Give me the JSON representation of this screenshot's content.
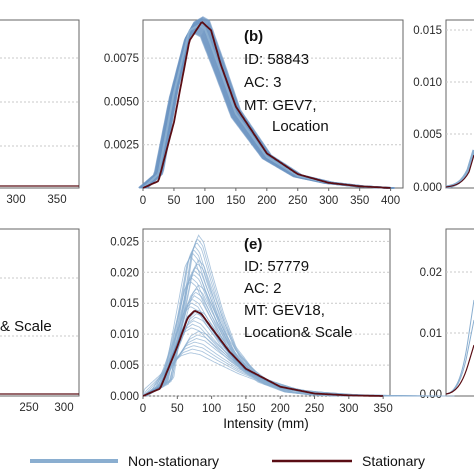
{
  "colors": {
    "non_stationary": "#8aaed0",
    "non_stationary_band": "#6d96c2",
    "stationary": "#5a0d14",
    "axis": "#666666",
    "grid": "#c9c9c9"
  },
  "shared_xlabel": "Intensity (mm)",
  "legend": {
    "position": "bottom",
    "items": [
      {
        "label": "Non-stationary",
        "color": "#8aaed0"
      },
      {
        "label": "Stationary",
        "color": "#5a0d14"
      }
    ]
  },
  "chart_data": [
    {
      "panel": "top-left",
      "type": "line",
      "label": "",
      "annotation": [],
      "xticks": [
        "300",
        "350"
      ],
      "yticks": [],
      "note": "partially cropped panel"
    },
    {
      "panel": "b",
      "type": "line",
      "label": "(b)",
      "annotation": [
        "ID: 58843",
        "AC: 3",
        "MT: GEV7,",
        "Location"
      ],
      "xlim": [
        0,
        420
      ],
      "ylim": [
        0,
        0.0097
      ],
      "xticks": [
        0,
        50,
        100,
        150,
        200,
        250,
        300,
        350,
        400
      ],
      "yticks": [
        0.0025,
        0.005,
        0.0075
      ],
      "ytick_labels": [
        "0.0025",
        "0.0050",
        "0.0075"
      ],
      "grid": "horizontal",
      "series": [
        {
          "name": "Non-stationary",
          "kind": "ensemble",
          "x": [
            0,
            25,
            50,
            75,
            90,
            100,
            125,
            150,
            200,
            250,
            300,
            350,
            400
          ],
          "y": [
            0,
            0.0008,
            0.0055,
            0.0091,
            0.0094,
            0.0092,
            0.0068,
            0.0043,
            0.0018,
            0.0007,
            0.0003,
            0.0001,
            0.0
          ],
          "spread": 0.0007
        },
        {
          "name": "Stationary",
          "x": [
            0,
            25,
            50,
            75,
            95,
            110,
            125,
            150,
            200,
            250,
            300,
            350,
            400
          ],
          "y": [
            0,
            0.0004,
            0.0038,
            0.0085,
            0.0096,
            0.0091,
            0.0072,
            0.0047,
            0.002,
            0.0008,
            0.0003,
            0.0001,
            0.0
          ]
        }
      ]
    },
    {
      "panel": "top-right",
      "type": "line",
      "label": "",
      "annotation": [],
      "yticks": [
        0.0,
        0.005,
        0.01,
        0.015
      ],
      "ytick_labels": [
        "0.000",
        "0.005",
        "0.010",
        "0.015"
      ],
      "note": "partially cropped panel"
    },
    {
      "panel": "bottom-left",
      "type": "line",
      "label": "",
      "annotation": [
        "& Scale"
      ],
      "xticks": [
        "250",
        "300"
      ],
      "note": "partially cropped panel"
    },
    {
      "panel": "e",
      "type": "line",
      "label": "(e)",
      "annotation": [
        "ID: 57779",
        "AC: 2",
        "MT: GEV18,",
        "Location& Scale"
      ],
      "xlim": [
        0,
        360
      ],
      "ylim": [
        0,
        0.027
      ],
      "xticks": [
        0,
        50,
        100,
        150,
        200,
        250,
        300,
        350
      ],
      "yticks": [
        0.0,
        0.005,
        0.01,
        0.015,
        0.02,
        0.025
      ],
      "ytick_labels": [
        "0.000",
        "0.005",
        "0.010",
        "0.015",
        "0.020",
        "0.025"
      ],
      "xlabel": "Intensity (mm)",
      "grid": "horizontal",
      "series": [
        {
          "name": "Non-stationary",
          "kind": "ensemble",
          "peak_range": [
            0.007,
            0.026
          ],
          "x": [
            0,
            25,
            50,
            65,
            75,
            85,
            100,
            125,
            150,
            200,
            250,
            300,
            350
          ],
          "y": [
            0,
            0.0015,
            0.0085,
            0.0128,
            0.0138,
            0.0132,
            0.0108,
            0.0071,
            0.0042,
            0.0014,
            0.0004,
            0.0001,
            0.0
          ]
        },
        {
          "name": "Stationary",
          "x": [
            0,
            25,
            50,
            65,
            75,
            85,
            100,
            125,
            150,
            200,
            250,
            300,
            350
          ],
          "y": [
            0,
            0.0012,
            0.008,
            0.0126,
            0.0138,
            0.0133,
            0.011,
            0.0073,
            0.0044,
            0.0015,
            0.0004,
            0.0001,
            0.0
          ]
        }
      ]
    },
    {
      "panel": "bottom-right",
      "type": "line",
      "label": "",
      "annotation": [],
      "yticks": [
        0.0,
        0.01,
        0.02
      ],
      "ytick_labels": [
        "0.00",
        "0.01",
        "0.02"
      ],
      "note": "partially cropped panel"
    }
  ]
}
